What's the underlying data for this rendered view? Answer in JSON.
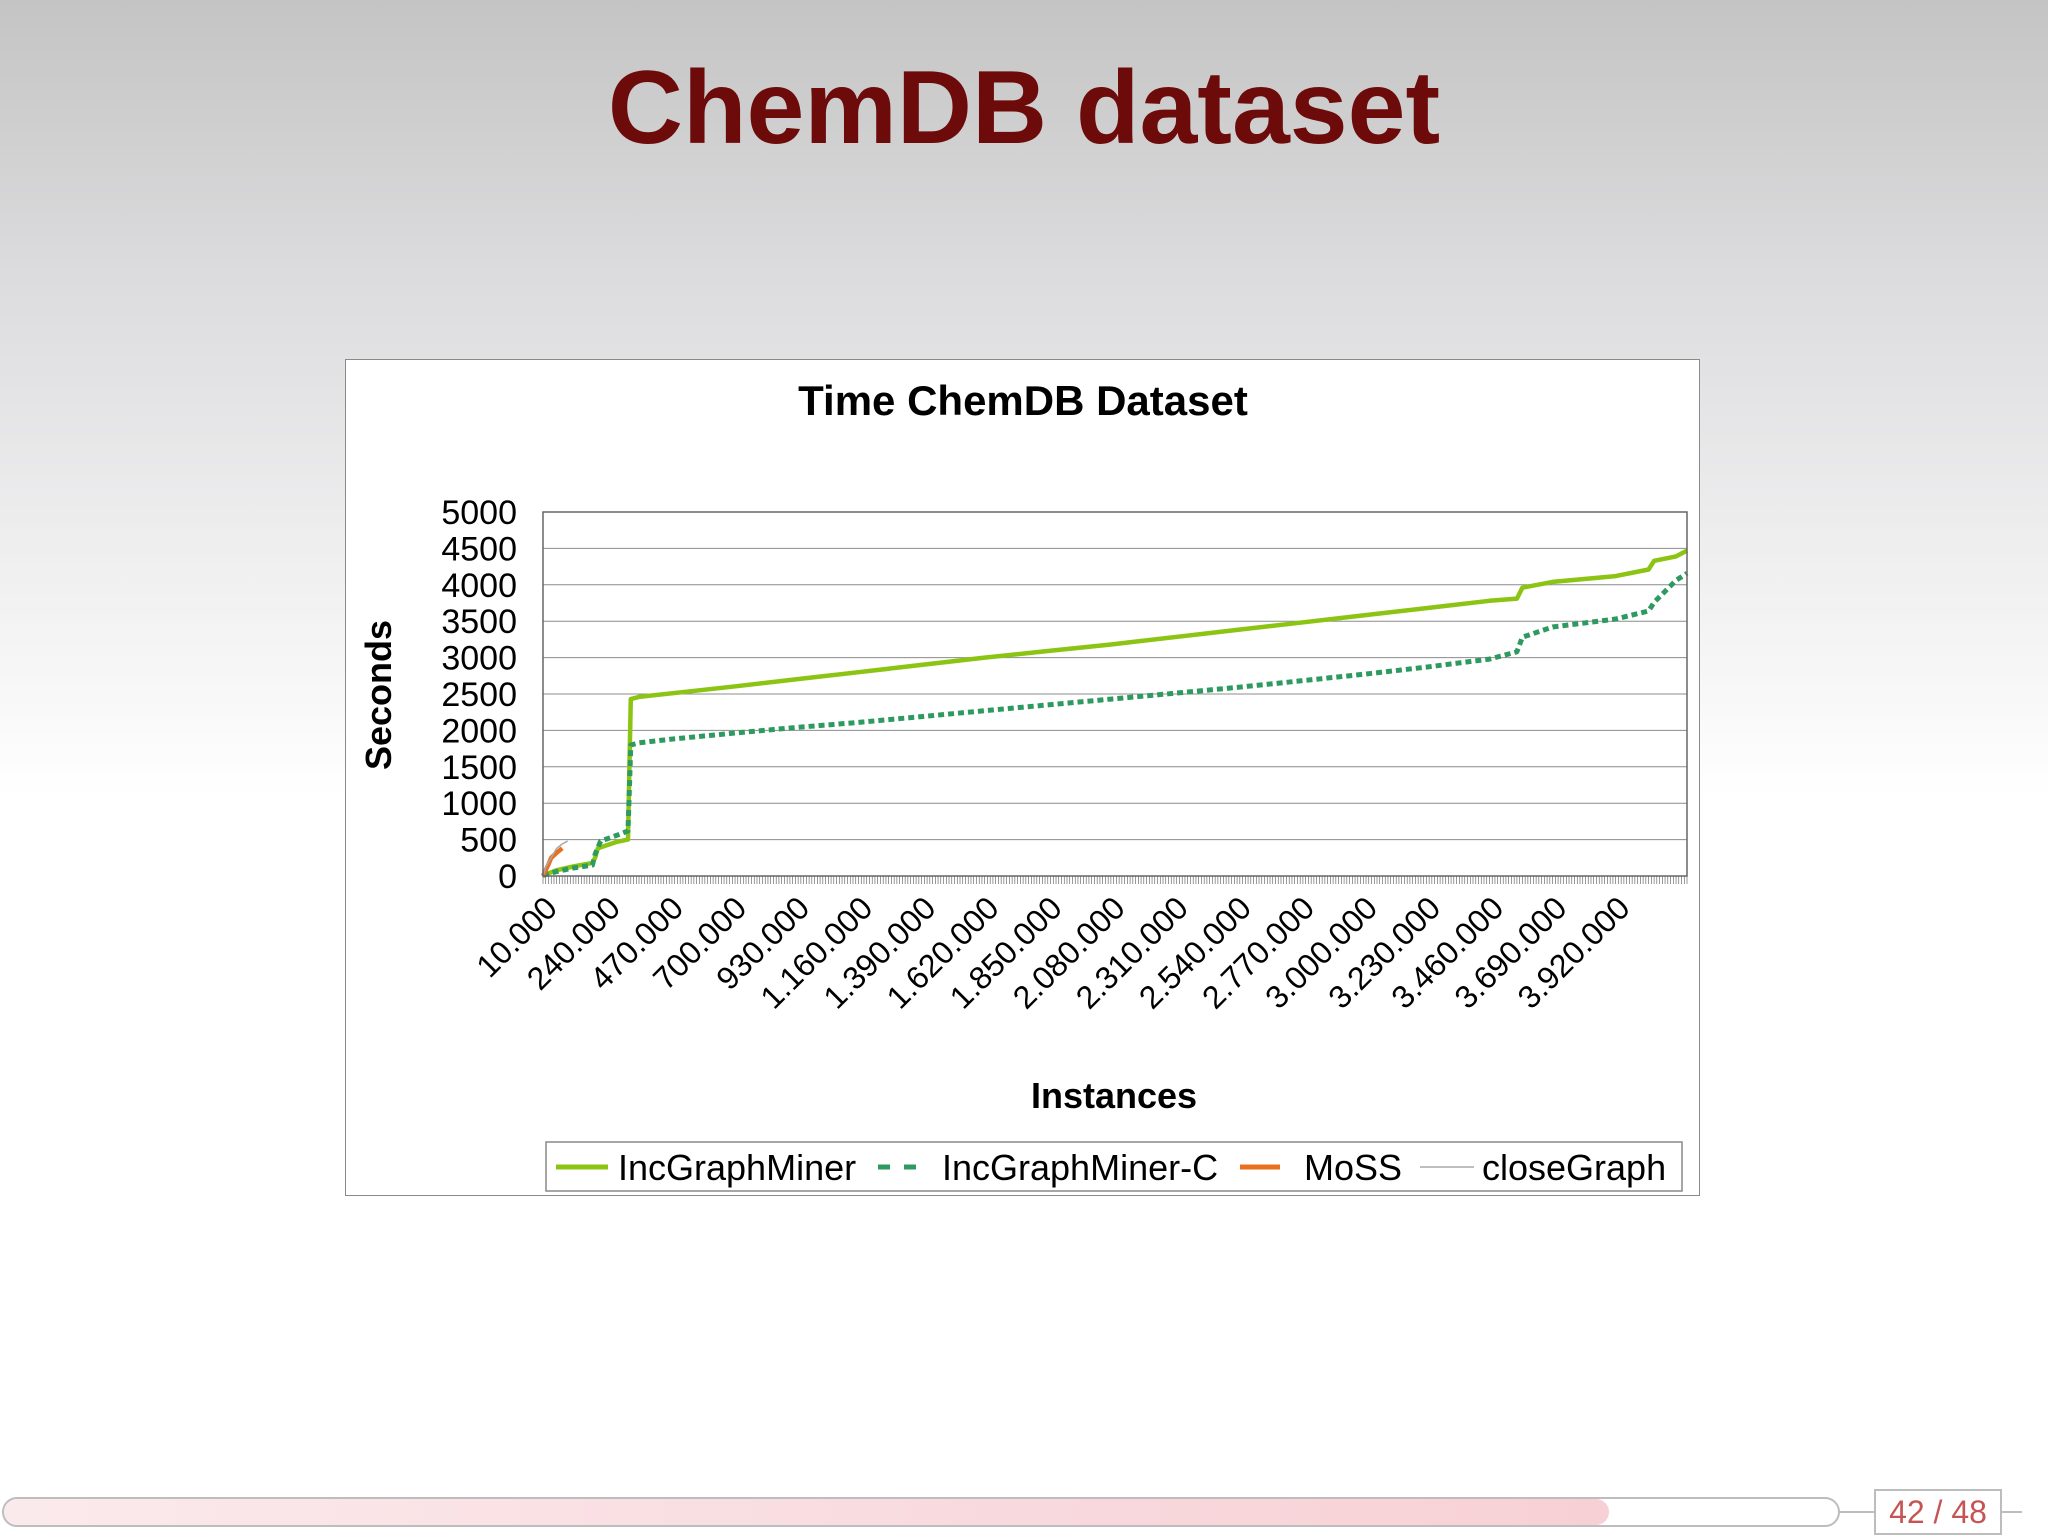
{
  "slide": {
    "title": "ChemDB dataset",
    "page_counter": "42 / 48",
    "progress": 0.875
  },
  "chart_data": {
    "type": "line",
    "title": "Time ChemDB Dataset",
    "xlabel": "Instances",
    "ylabel": "Seconds",
    "ylim": [
      0,
      5000
    ],
    "yticks": [
      "0",
      "500",
      "1000",
      "1500",
      "2000",
      "2500",
      "3000",
      "3500",
      "4000",
      "4500",
      "5000"
    ],
    "xlim": [
      10000,
      4180000
    ],
    "xtick_values": [
      10000,
      240000,
      470000,
      700000,
      930000,
      1160000,
      1390000,
      1620000,
      1850000,
      2080000,
      2310000,
      2540000,
      2770000,
      3000000,
      3230000,
      3460000,
      3690000,
      3920000
    ],
    "xticks": [
      "10.000",
      "240.000",
      "470.000",
      "700.000",
      "930.000",
      "1.160.000",
      "1.390.000",
      "1.620.000",
      "1.850.000",
      "2.080.000",
      "2.310.000",
      "2.540.000",
      "2.770.000",
      "3.000.000",
      "3.230.000",
      "3.460.000",
      "3.690.000",
      "3.920.000"
    ],
    "grid": true,
    "legend": "bottom",
    "series": [
      {
        "name": "IncGraphMiner",
        "color": "#8cc414",
        "style": "solid",
        "x": [
          10000,
          60000,
          120000,
          190000,
          200000,
          210000,
          280000,
          320000,
          325000,
          330000,
          360000,
          480000,
          700000,
          930000,
          1160000,
          1390000,
          1620000,
          1850000,
          2080000,
          2310000,
          2540000,
          2770000,
          3000000,
          3230000,
          3460000,
          3560000,
          3580000,
          3690000,
          3920000,
          4040000,
          4060000,
          4140000,
          4180000
        ],
        "y": [
          10,
          80,
          130,
          180,
          250,
          380,
          470,
          500,
          1500,
          2430,
          2460,
          2510,
          2600,
          2700,
          2800,
          2900,
          3000,
          3090,
          3180,
          3280,
          3380,
          3480,
          3580,
          3680,
          3780,
          3810,
          3960,
          4040,
          4120,
          4210,
          4330,
          4390,
          4470
        ]
      },
      {
        "name": "IncGraphMiner-C",
        "color": "#2e9a60",
        "style": "dashed",
        "x": [
          10000,
          60000,
          120000,
          190000,
          200000,
          220000,
          280000,
          320000,
          325000,
          330000,
          360000,
          480000,
          700000,
          930000,
          1160000,
          1390000,
          1620000,
          1850000,
          2080000,
          2310000,
          2540000,
          2770000,
          3000000,
          3230000,
          3460000,
          3560000,
          3580000,
          3690000,
          3920000,
          4040000,
          4060000,
          4140000,
          4180000
        ],
        "y": [
          10,
          60,
          110,
          150,
          300,
          480,
          560,
          620,
          1200,
          1800,
          1830,
          1880,
          1960,
          2040,
          2110,
          2190,
          2270,
          2350,
          2430,
          2510,
          2590,
          2680,
          2770,
          2870,
          2980,
          3080,
          3280,
          3420,
          3530,
          3640,
          3760,
          4060,
          4160
        ]
      },
      {
        "name": "MoSS",
        "color": "#e8701e",
        "style": "solid",
        "x": [
          10000,
          20000,
          30000,
          40000,
          60000,
          80000
        ],
        "y": [
          0,
          80,
          160,
          250,
          320,
          380
        ]
      },
      {
        "name": "closeGraph",
        "color": "#a8a8a8",
        "style": "thin",
        "x": [
          10000,
          20000,
          40000,
          60000,
          80000,
          100000
        ],
        "y": [
          0,
          120,
          250,
          380,
          440,
          480
        ]
      }
    ]
  }
}
